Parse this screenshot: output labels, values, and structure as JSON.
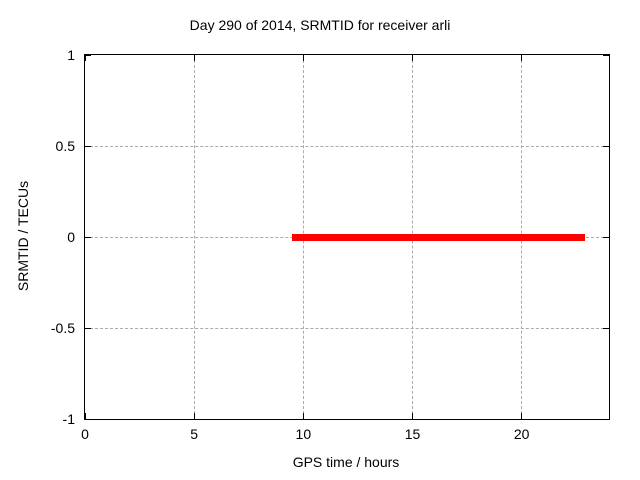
{
  "chart_data": {
    "type": "line",
    "title": "Day 290 of 2014, SRMTID for receiver arli",
    "xlabel": "GPS time / hours",
    "ylabel": "SRMTID / TECUs",
    "xlim": [
      0,
      24
    ],
    "ylim": [
      -1,
      1
    ],
    "grid": true,
    "legend": "none",
    "xticks": [
      {
        "value": 0,
        "label": "0"
      },
      {
        "value": 5,
        "label": "5"
      },
      {
        "value": 10,
        "label": "10"
      },
      {
        "value": 15,
        "label": "15"
      },
      {
        "value": 20,
        "label": "20"
      }
    ],
    "yticks": [
      {
        "value": -1,
        "label": "-1"
      },
      {
        "value": -0.5,
        "label": "-0.5"
      },
      {
        "value": 0,
        "label": "0"
      },
      {
        "value": 0.5,
        "label": "0.5"
      },
      {
        "value": 1,
        "label": "1"
      }
    ],
    "series": [
      {
        "color": "#ff0000",
        "shape": "thick-horizontal-segment",
        "points": [
          {
            "x_start": 9.5,
            "x_end": 22.9,
            "y": 0
          }
        ]
      }
    ]
  },
  "colors": {
    "background": "#ffffff",
    "axis": "#000000",
    "grid": "#aaaaaa",
    "text": "#000000",
    "series_red": "#ff0000"
  }
}
